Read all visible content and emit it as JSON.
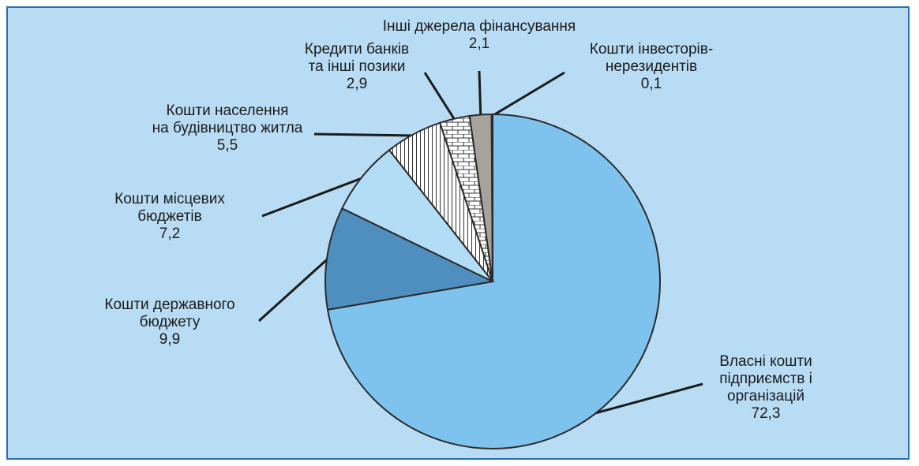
{
  "chart_data": {
    "type": "pie",
    "start_angle_deg": 0,
    "direction": "clockwise",
    "slices": [
      {
        "label_lines": [
          "Власні кошти",
          "підприємств і",
          "організацій"
        ],
        "value": 72.3,
        "value_text": "72,3",
        "fill": "#7ec3ee",
        "pattern": "none"
      },
      {
        "label_lines": [
          "Кошти державного",
          "бюджету"
        ],
        "value": 9.9,
        "value_text": "9,9",
        "fill": "#4f8fc0",
        "pattern": "none"
      },
      {
        "label_lines": [
          "Кошти місцевих",
          "бюджетів"
        ],
        "value": 7.2,
        "value_text": "7,2",
        "fill": "#b3dcf7",
        "pattern": "none"
      },
      {
        "label_lines": [
          "Кошти населення",
          "на будівництво житла"
        ],
        "value": 5.5,
        "value_text": "5,5",
        "fill": "#ffffff",
        "pattern": "vertical-lines"
      },
      {
        "label_lines": [
          "Кредити банків",
          "та інші позики"
        ],
        "value": 2.9,
        "value_text": "2,9",
        "fill": "#ffffff",
        "pattern": "brick"
      },
      {
        "label_lines": [
          "Інші джерела фінансування"
        ],
        "value": 2.1,
        "value_text": "2,1",
        "fill": "#a8a29c",
        "pattern": "none"
      },
      {
        "label_lines": [
          "Кошти інвесторів-",
          "нерезидентів"
        ],
        "value": 0.1,
        "value_text": "0,1",
        "fill": "#5a5a5a",
        "pattern": "none"
      }
    ]
  }
}
